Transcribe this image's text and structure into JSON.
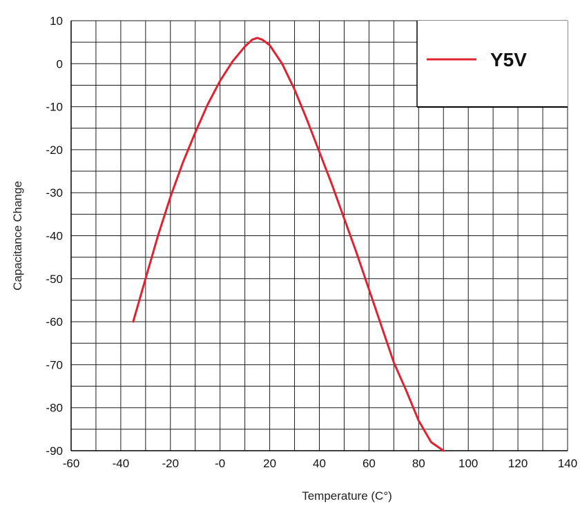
{
  "chart_data": {
    "type": "line",
    "xlabel": "Temperature (C°)",
    "ylabel": "Capacitance Change",
    "xlim": [
      -60,
      140
    ],
    "ylim": [
      -90,
      10
    ],
    "x_ticks": [
      "-60",
      "-40",
      "-20",
      "-0",
      "20",
      "40",
      "60",
      "80",
      "100",
      "120",
      "140"
    ],
    "y_ticks": [
      "10",
      "0",
      "-10",
      "-20",
      "-30",
      "-40",
      "-50",
      "-60",
      "-70",
      "-80",
      "-90"
    ],
    "grid": true,
    "legend": {
      "position": "top-right"
    },
    "series": [
      {
        "name": "Y5V",
        "color": "#e0212f",
        "points": [
          [
            -35,
            -60
          ],
          [
            -30,
            -50
          ],
          [
            -25,
            -40
          ],
          [
            -20,
            -31
          ],
          [
            -15,
            -23
          ],
          [
            -10,
            -16
          ],
          [
            -5,
            -9.5
          ],
          [
            0,
            -4
          ],
          [
            5,
            0.5
          ],
          [
            10,
            4
          ],
          [
            13,
            5.6
          ],
          [
            15,
            6
          ],
          [
            17,
            5.6
          ],
          [
            20,
            4.3
          ],
          [
            25,
            0
          ],
          [
            30,
            -6
          ],
          [
            35,
            -13
          ],
          [
            40,
            -20.5
          ],
          [
            45,
            -28
          ],
          [
            50,
            -36
          ],
          [
            55,
            -44
          ],
          [
            60,
            -52.5
          ],
          [
            65,
            -61
          ],
          [
            70,
            -69.5
          ],
          [
            75,
            -76
          ],
          [
            80,
            -83
          ],
          [
            85,
            -88
          ],
          [
            90,
            -90
          ]
        ]
      }
    ]
  }
}
